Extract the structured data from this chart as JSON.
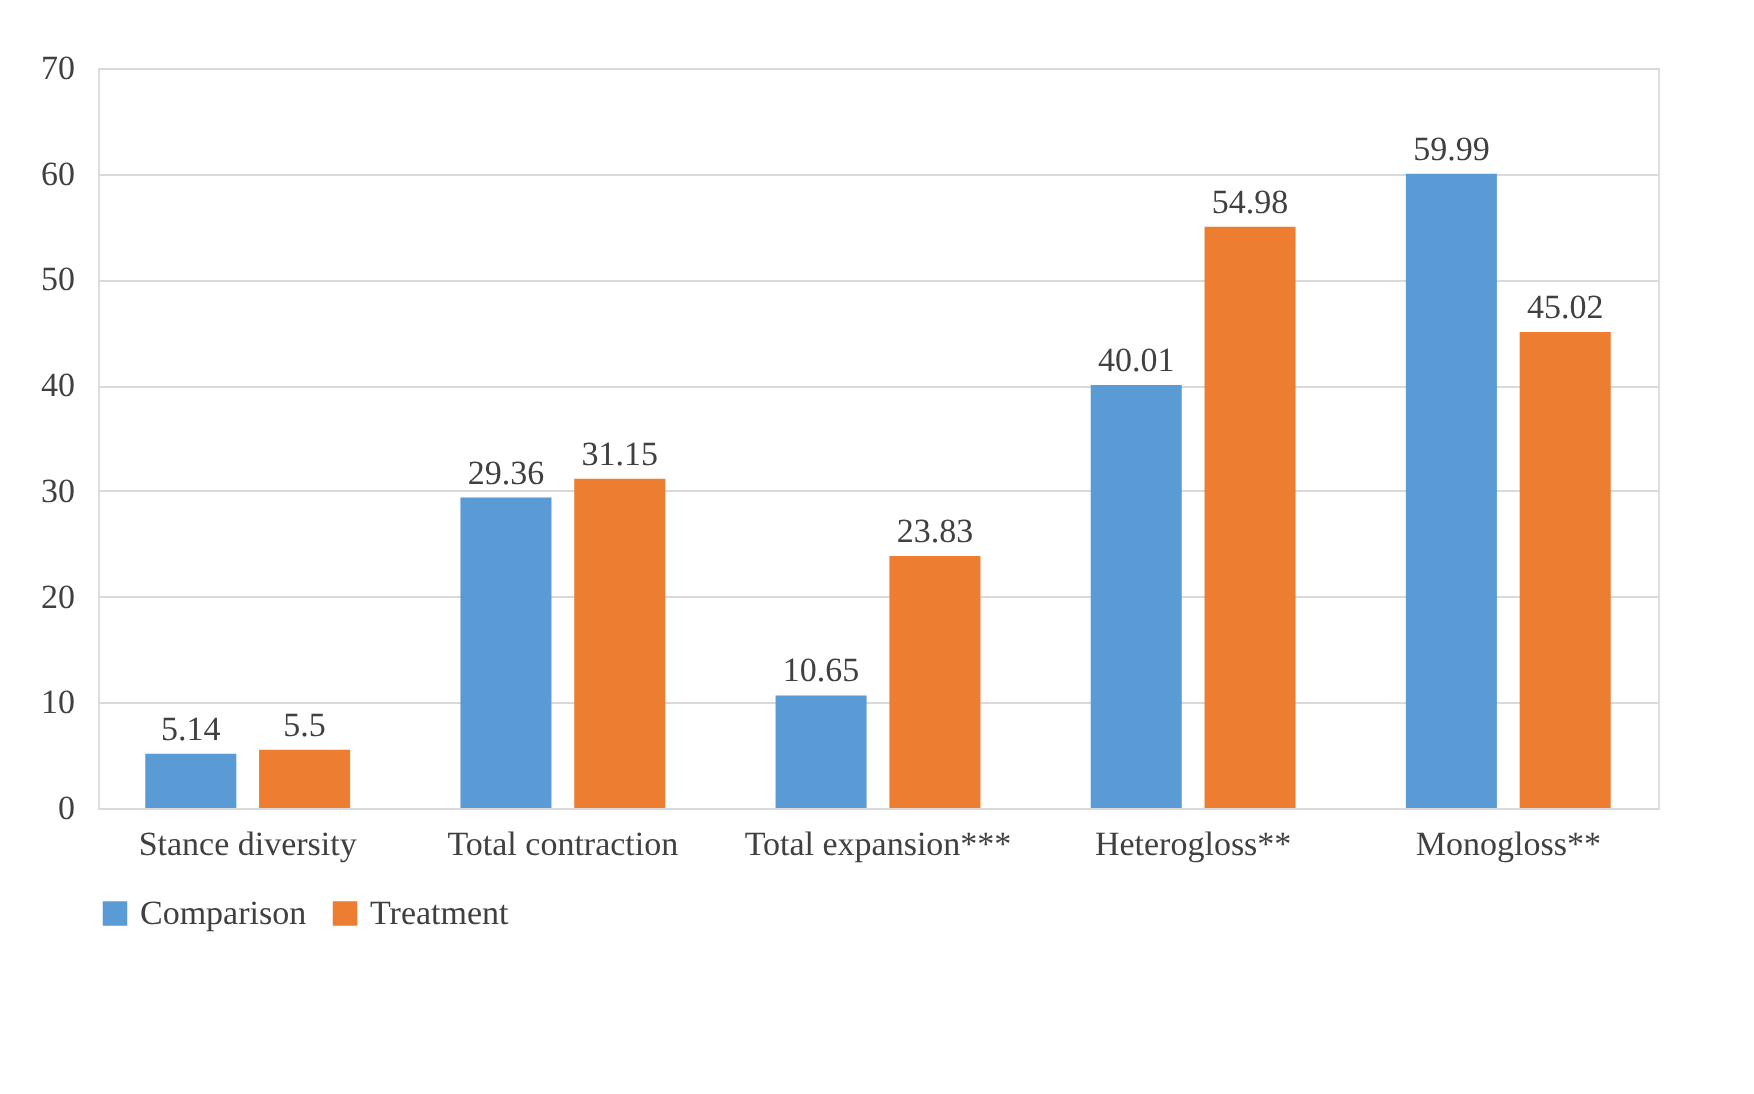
{
  "chart_data": {
    "type": "bar",
    "categories": [
      "Stance diversity",
      "Total contraction",
      "Total expansion***",
      "Heterogloss**",
      "Monogloss**"
    ],
    "series": [
      {
        "name": "Comparison",
        "color": "#5b9bd5",
        "values": [
          5.14,
          29.36,
          10.65,
          40.01,
          59.99
        ]
      },
      {
        "name": "Treatment",
        "color": "#ed7d31",
        "values": [
          5.5,
          31.15,
          23.83,
          54.98,
          45.02
        ]
      }
    ],
    "ylim": [
      0,
      70
    ],
    "yticks": [
      0,
      10,
      20,
      30,
      40,
      50,
      60,
      70
    ],
    "grid": "y",
    "legend": "bottom",
    "data_labels": true
  }
}
